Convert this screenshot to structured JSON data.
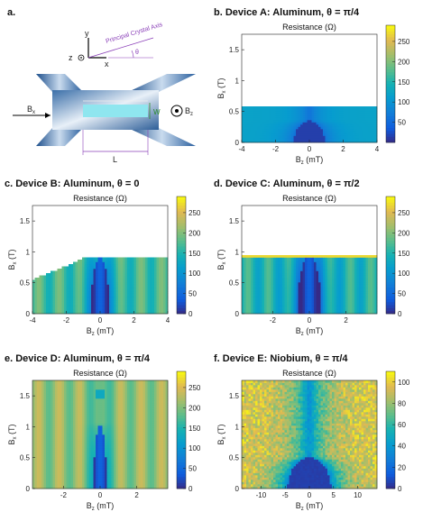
{
  "figure": {
    "panel_a": {
      "label": "a.",
      "axis_y": "y",
      "axis_z": "z",
      "axis_x": "x",
      "principal_axis": "Principal Crystal Axis",
      "theta": "θ",
      "bx": "B",
      "bx_sub": "x",
      "bz": "B",
      "bz_sub": "z",
      "w": "W",
      "l": "L"
    }
  },
  "chart_data": [
    {
      "id": "b",
      "type": "heatmap",
      "title": "b. Device A: Aluminum, θ = π/4",
      "plot_title": "Resistance (Ω)",
      "xlabel": "B",
      "xlabel_sub": "z",
      "xlabel_unit": "(mT)",
      "ylabel": "B",
      "ylabel_sub": "x",
      "ylabel_unit": "(T)",
      "xlim": [
        -4,
        4
      ],
      "ylim": [
        0,
        1.75
      ],
      "xticks": [
        -4,
        -2,
        0,
        2,
        4
      ],
      "yticks": [
        0,
        0.5,
        1,
        1.5
      ],
      "ytick_labels": [
        "0",
        "0.5",
        "1",
        "1.5"
      ],
      "data_ymax": 0.6,
      "colorbar": {
        "min": 0,
        "max": 290,
        "ticks": [
          50,
          100,
          150,
          200,
          250
        ],
        "labels": [
          "50",
          "100",
          "150",
          "200",
          "250"
        ]
      },
      "background_value": 120,
      "dome_half_width": 0.9,
      "dome_height": 0.35,
      "stripes": false
    },
    {
      "id": "c",
      "type": "heatmap",
      "title": "c. Device B: Aluminum, θ = 0",
      "plot_title": "Resistance (Ω)",
      "xlabel": "B",
      "xlabel_sub": "z",
      "xlabel_unit": "(mT)",
      "ylabel": "B",
      "ylabel_sub": "x",
      "ylabel_unit": "(T)",
      "xlim": [
        -4,
        4
      ],
      "ylim": [
        0,
        1.75
      ],
      "xticks": [
        -4,
        -2,
        0,
        2,
        4
      ],
      "yticks": [
        0,
        0.5,
        1,
        1.5
      ],
      "ytick_labels": [
        "0",
        "0.5",
        "1",
        "1.5"
      ],
      "data_ymax": 0.9,
      "staircase_left": true,
      "colorbar": {
        "min": 0,
        "max": 290,
        "ticks": [
          0,
          50,
          100,
          150,
          200,
          250
        ],
        "labels": [
          "0",
          "50",
          "100",
          "150",
          "200",
          "250"
        ]
      },
      "background_value": 170,
      "dome_half_width": 0.55,
      "dome_height": 0.9,
      "stripes": true
    },
    {
      "id": "d",
      "type": "heatmap",
      "title": "d. Device C: Aluminum, θ = π/2",
      "plot_title": "Resistance (Ω)",
      "xlabel": "B",
      "xlabel_sub": "z",
      "xlabel_unit": "(mT)",
      "ylabel": "B",
      "ylabel_sub": "x",
      "ylabel_unit": "(T)",
      "xlim": [
        -3.7,
        3.7
      ],
      "ylim": [
        0,
        1.75
      ],
      "xticks": [
        -2,
        0,
        2
      ],
      "yticks": [
        0,
        0.5,
        1,
        1.5
      ],
      "ytick_labels": [
        "0",
        "0.5",
        "1",
        "1.5"
      ],
      "data_ymax": 0.95,
      "colorbar": {
        "min": 0,
        "max": 290,
        "ticks": [
          0,
          50,
          100,
          150,
          200,
          250
        ],
        "labels": [
          "0",
          "50",
          "100",
          "150",
          "200",
          "250"
        ]
      },
      "background_value": 150,
      "dome_half_width": 0.65,
      "dome_height": 0.95,
      "stripes": true,
      "top_edge_value": 270
    },
    {
      "id": "e",
      "type": "heatmap",
      "title": "e. Device D: Aluminum, θ = π/4",
      "plot_title": "Resistance (Ω)",
      "xlabel": "B",
      "xlabel_sub": "z",
      "xlabel_unit": "(mT)",
      "ylabel": "B",
      "ylabel_sub": "x",
      "ylabel_unit": "(T)",
      "xlim": [
        -3.7,
        3.7
      ],
      "ylim": [
        0,
        1.75
      ],
      "xticks": [
        -2,
        0,
        2
      ],
      "yticks": [
        0,
        0.5,
        1,
        1.5
      ],
      "ytick_labels": [
        "0",
        "0.5",
        "1",
        "1.5"
      ],
      "data_ymax": 1.75,
      "colorbar": {
        "min": 0,
        "max": 290,
        "ticks": [
          0,
          50,
          100,
          150,
          200,
          250
        ],
        "labels": [
          "0",
          "50",
          "100",
          "150",
          "200",
          "250"
        ]
      },
      "background_value": 210,
      "dome_half_width": 0.35,
      "dome_height": 1.05,
      "stripes": true,
      "reentrant": [
        1.45,
        1.6
      ]
    },
    {
      "id": "f",
      "type": "heatmap",
      "title": "f. Device E: Niobium, θ = π/4",
      "plot_title": "Resistance (Ω)",
      "xlabel": "B",
      "xlabel_sub": "z",
      "xlabel_unit": "(mT)",
      "ylabel": "B",
      "ylabel_sub": "x",
      "ylabel_unit": "(T)",
      "xlim": [
        -14,
        14
      ],
      "ylim": [
        0,
        1.75
      ],
      "xticks": [
        -10,
        -5,
        0,
        5,
        10
      ],
      "yticks": [
        0,
        0.5,
        1,
        1.5
      ],
      "ytick_labels": [
        "0",
        "0.5",
        "1",
        "1.5"
      ],
      "data_ymax": 1.75,
      "colorbar": {
        "min": 0,
        "max": 110,
        "ticks": [
          0,
          20,
          40,
          60,
          80,
          100
        ],
        "labels": [
          "0",
          "20",
          "40",
          "60",
          "80",
          "100"
        ]
      },
      "background_value": 95,
      "dome_half_width": 4.5,
      "dome_height": 0.5,
      "stripes": false,
      "noisy": true
    }
  ]
}
